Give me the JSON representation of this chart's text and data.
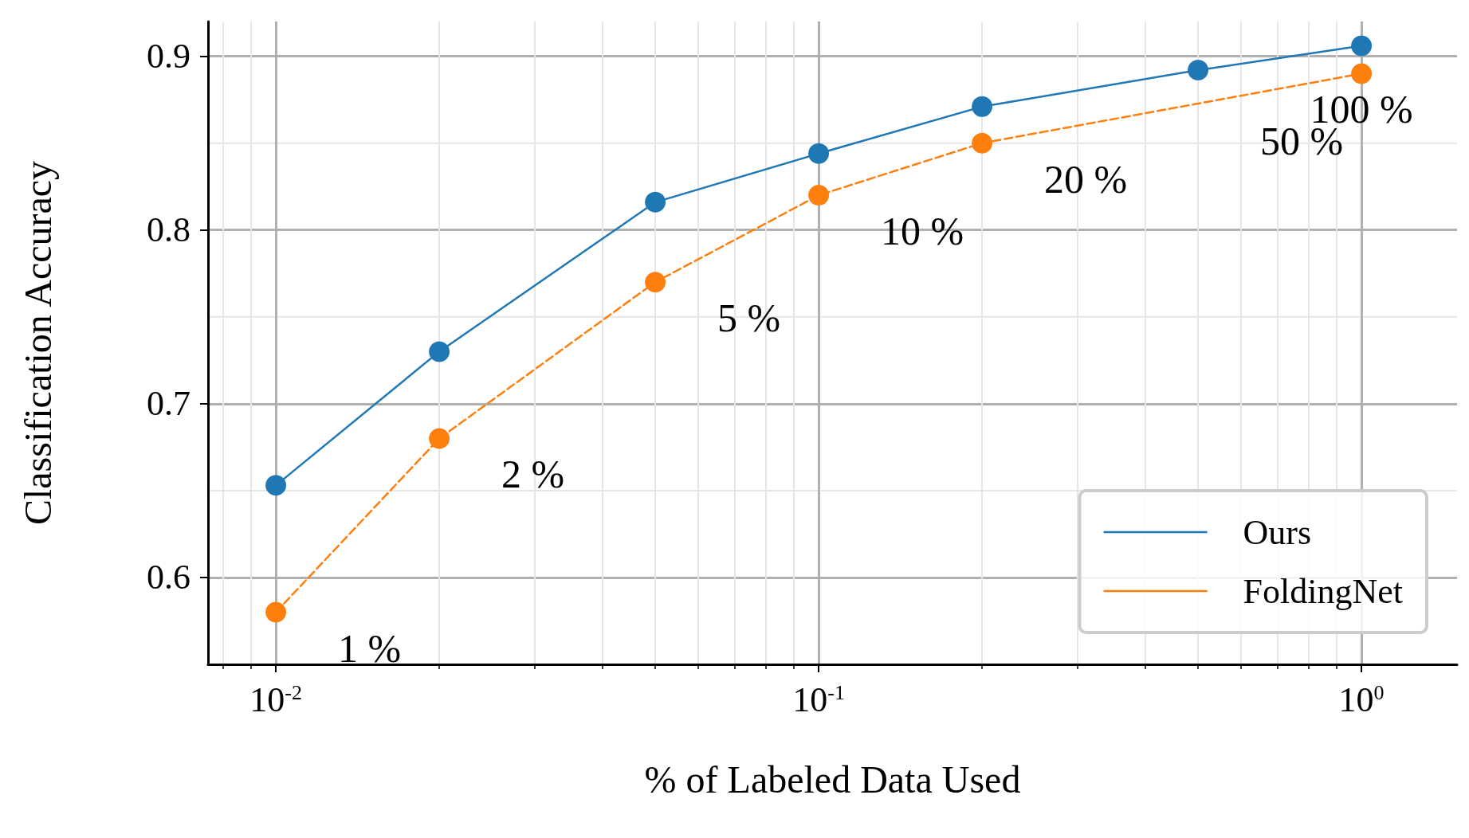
{
  "chart_data": {
    "type": "line",
    "xlabel": "% of Labeled Data Used",
    "ylabel": "Classification Accuracy",
    "log": "x",
    "xlim": [
      0.0075,
      1.5
    ],
    "xticks": [
      {
        "value": 0.01,
        "label": "10$^{-2}$"
      },
      {
        "value": 0.1,
        "label": "10$^{-1}$"
      },
      {
        "value": 1,
        "label": "10$^{0}$"
      }
    ],
    "ylim": [
      0.55,
      0.92
    ],
    "yticks": [
      0.6,
      0.7,
      0.8,
      0.9
    ],
    "grid": true,
    "legend": "bottom right",
    "marker": "circle",
    "series": [
      {
        "name": "Ours",
        "color": "#1f77b4",
        "line_style": "solid",
        "x": [
          0.01,
          0.02,
          0.05,
          0.1,
          0.2,
          0.5,
          1
        ],
        "values": [
          0.653,
          0.73,
          0.816,
          0.844,
          0.871,
          0.892,
          0.906
        ]
      },
      {
        "name": "FoldingNet",
        "color": "#ff7f0e",
        "line_style": "dashed",
        "x": [
          0.01,
          0.02,
          0.05,
          0.1,
          0.2,
          1
        ],
        "values": [
          0.58,
          0.68,
          0.77,
          0.82,
          0.85,
          0.89
        ]
      }
    ],
    "annotations": [
      {
        "text": "1 %",
        "x": 0.01,
        "y": 0.58
      },
      {
        "text": "2 %",
        "x": 0.02,
        "y": 0.68
      },
      {
        "text": "5 %",
        "x": 0.05,
        "y": 0.77
      },
      {
        "text": "10 %",
        "x": 0.1,
        "y": 0.82
      },
      {
        "text": "20 %",
        "x": 0.2,
        "y": 0.85
      },
      {
        "text": "50 %",
        "x": 0.5,
        "y": 0.872
      },
      {
        "text": "100 %",
        "x": 1,
        "y": 0.89
      }
    ]
  }
}
